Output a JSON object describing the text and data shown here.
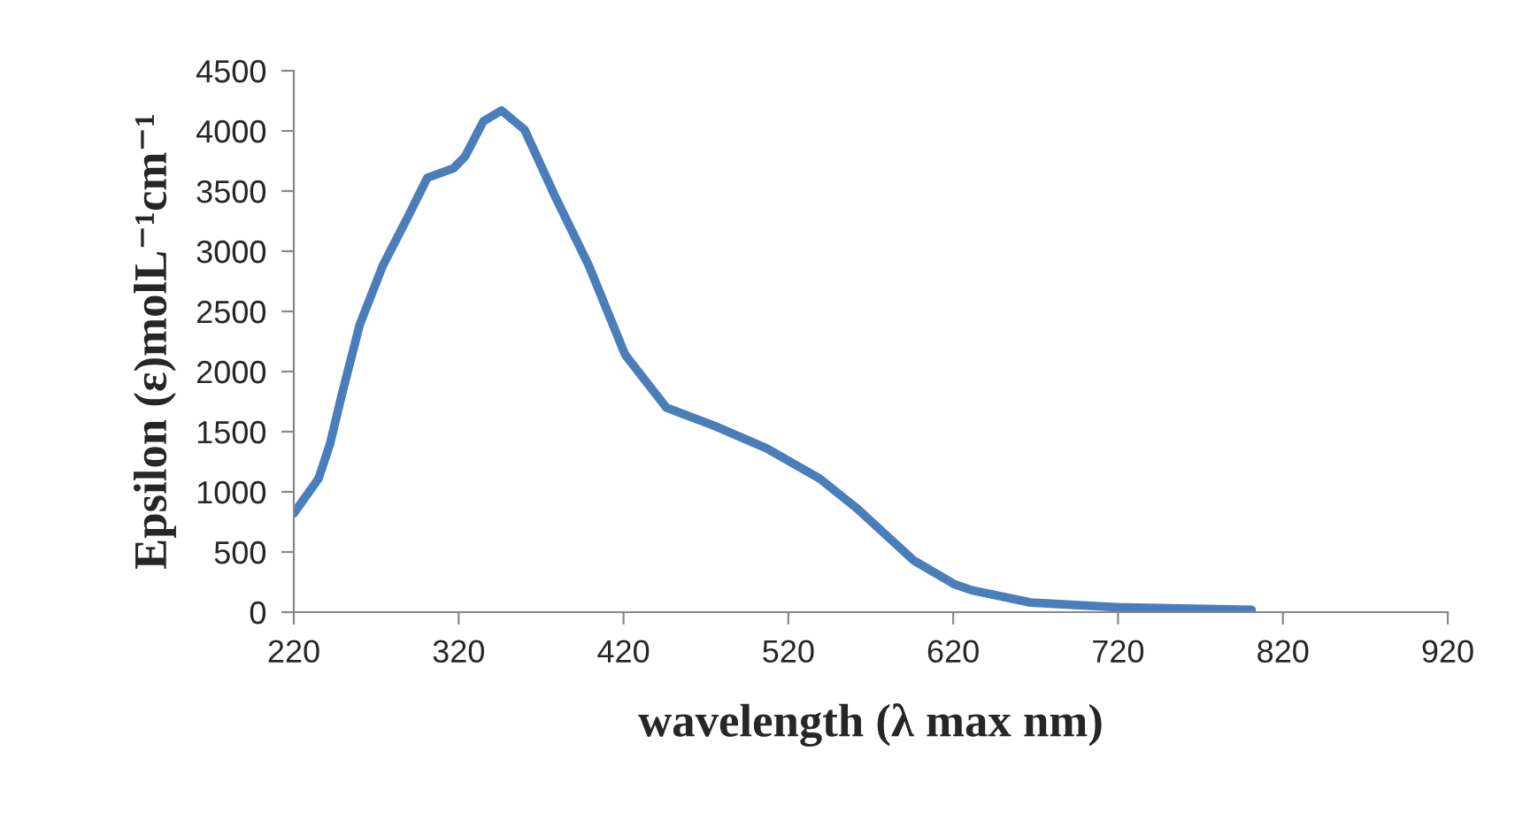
{
  "chart_data": {
    "type": "line",
    "xlabel": "wavelength (λ max nm)",
    "ylabel": "Epsilon (ε)molL⁻¹cm⁻¹",
    "xlim": [
      220,
      920
    ],
    "xticks": [
      220,
      320,
      420,
      520,
      620,
      720,
      820,
      920
    ],
    "ylim": [
      0,
      4500
    ],
    "yticks": [
      0,
      500,
      1000,
      1500,
      2000,
      2500,
      3000,
      3500,
      4000,
      4500
    ],
    "grid": false,
    "legend": false,
    "marker": "none",
    "line_style": "solid",
    "series": [
      {
        "color": "#4a7ebb",
        "x": [
          220,
          235,
          242,
          249,
          260,
          274,
          289,
          301,
          317,
          324,
          335,
          346,
          360,
          378,
          399,
          421,
          446,
          475,
          507,
          539,
          561,
          596,
          621,
          632,
          667,
          721,
          801
        ],
        "values": [
          820,
          1110,
          1400,
          1800,
          2390,
          2880,
          3280,
          3610,
          3690,
          3790,
          4080,
          4170,
          4010,
          3470,
          2880,
          2140,
          1700,
          1550,
          1360,
          1110,
          870,
          430,
          230,
          180,
          80,
          40,
          20
        ]
      }
    ]
  }
}
